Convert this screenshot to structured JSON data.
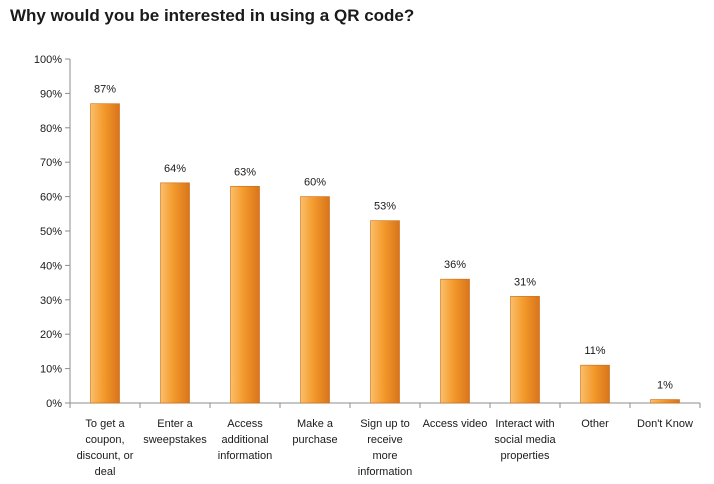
{
  "chart_data": {
    "type": "bar",
    "title": "Why would you be interested in using a QR code?",
    "categories": [
      [
        "To get a",
        "coupon,",
        "discount, or",
        "deal"
      ],
      [
        "Enter a",
        "sweepstakes"
      ],
      [
        "Access",
        "additional",
        "information"
      ],
      [
        "Make a",
        "purchase"
      ],
      [
        "Sign up to",
        "receive",
        "more",
        "information"
      ],
      [
        "Access video"
      ],
      [
        "Interact with",
        "social media",
        "properties"
      ],
      [
        "Other"
      ],
      [
        "Don't Know"
      ]
    ],
    "values": [
      87,
      64,
      63,
      60,
      53,
      36,
      31,
      11,
      1
    ],
    "data_labels": [
      "87%",
      "64%",
      "63%",
      "60%",
      "53%",
      "36%",
      "31%",
      "11%",
      "1%"
    ],
    "y_ticks": [
      "0%",
      "10%",
      "20%",
      "30%",
      "40%",
      "50%",
      "60%",
      "70%",
      "80%",
      "90%",
      "100%"
    ],
    "ylim": [
      0,
      100
    ],
    "xlabel": "",
    "ylabel": "",
    "grid": false,
    "legend": "none",
    "colors": {
      "bar_light": "#fbbf6a",
      "bar_mid": "#f39a2c",
      "bar_dark": "#d8741a",
      "axis": "#8c8c8c"
    }
  }
}
